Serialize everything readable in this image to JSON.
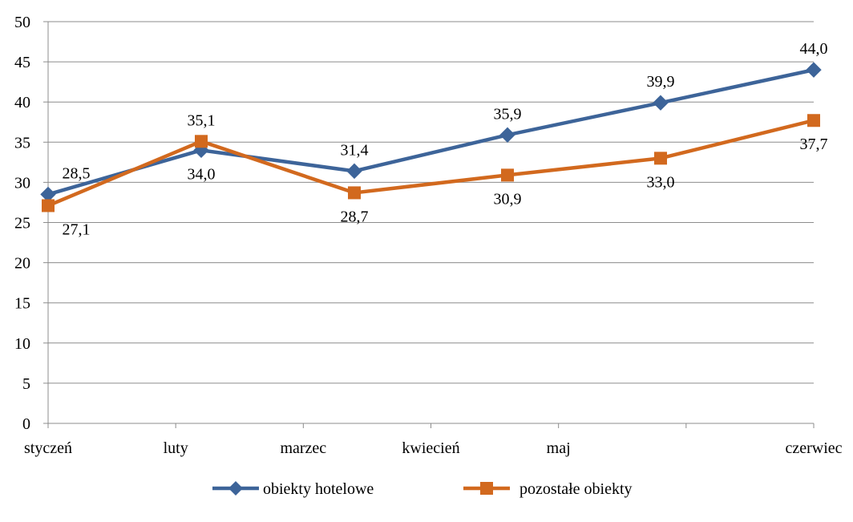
{
  "chart_data": {
    "type": "line",
    "categories": [
      "styczeń",
      "luty",
      "marzec",
      "kwiecień",
      "maj",
      "czerwiec"
    ],
    "series": [
      {
        "name": "obiekty hotelowe",
        "color": "#3d6499",
        "marker": "diamond",
        "values": [
          28.5,
          34.0,
          31.4,
          35.9,
          39.9,
          44.0
        ],
        "labels": [
          "28,5",
          "34,0",
          "31,4",
          "35,9",
          "39,9",
          "44,0"
        ],
        "label_positions": [
          "above",
          "below",
          "above",
          "above",
          "above",
          "above"
        ]
      },
      {
        "name": "pozostałe obiekty",
        "color": "#d2691e",
        "marker": "square",
        "values": [
          27.1,
          35.1,
          28.7,
          30.9,
          33.0,
          37.7
        ],
        "labels": [
          "27,1",
          "35,1",
          "28,7",
          "30,9",
          "33,0",
          "37,7"
        ],
        "label_positions": [
          "below",
          "above",
          "below",
          "below",
          "below",
          "below"
        ]
      }
    ],
    "ylim": [
      0,
      50
    ],
    "yticks": [
      "0",
      "5",
      "10",
      "15",
      "20",
      "25",
      "30",
      "35",
      "40",
      "45",
      "50"
    ],
    "grid": "horizontal",
    "legend": "bottom",
    "title": "",
    "xlabel": "",
    "ylabel": ""
  }
}
